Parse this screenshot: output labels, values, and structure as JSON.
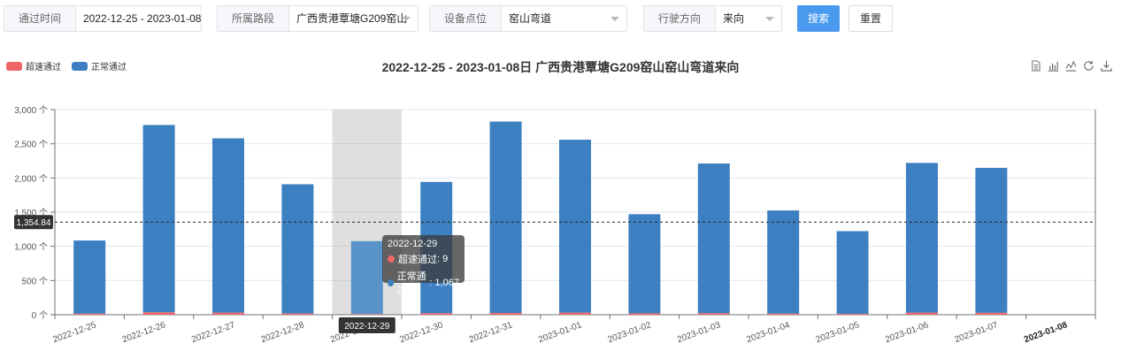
{
  "filters": {
    "time_label": "通过时间",
    "time_value": "2022-12-25 - 2023-01-08",
    "road_label": "所属路段",
    "road_value": "广西贵港覃塘G209窑山",
    "point_label": "设备点位",
    "point_value": "窑山弯道",
    "direction_label": "行驶方向",
    "direction_value": "来向",
    "search_label": "搜索",
    "reset_label": "重置"
  },
  "toolbox": [
    "data-view-icon",
    "bar-chart-icon",
    "line-chart-icon",
    "refresh-icon",
    "download-icon"
  ],
  "chart_data": {
    "type": "bar",
    "stacked": true,
    "title": "2022-12-25 - 2023-01-08日 广西贵港覃塘G209窑山窑山弯道来向",
    "categories": [
      "2022-12-25",
      "2022-12-26",
      "2022-12-27",
      "2022-12-28",
      "2022-12-29",
      "2022-12-30",
      "2022-12-31",
      "2023-01-01",
      "2023-01-02",
      "2023-01-03",
      "2023-01-04",
      "2023-01-05",
      "2023-01-06",
      "2023-01-07",
      "2023-01-08"
    ],
    "series": [
      {
        "name": "超速通过",
        "color": "#ee6666",
        "values": [
          15,
          35,
          30,
          18,
          9,
          22,
          25,
          30,
          20,
          22,
          15,
          12,
          30,
          28,
          0
        ]
      },
      {
        "name": "正常通过",
        "color": "#3d80c1",
        "values": [
          1070,
          2740,
          2550,
          1890,
          1067,
          1920,
          2800,
          2530,
          1450,
          2190,
          1510,
          1210,
          2190,
          2120,
          0
        ]
      }
    ],
    "ylim": [
      0,
      3000
    ],
    "y_ticks": [
      "0 个",
      "500 个",
      "1,000 个",
      "1,500 个",
      "2,000 个",
      "2,500 个",
      "3,000 个"
    ],
    "y_tick_values": [
      0,
      500,
      1000,
      1500,
      2000,
      2500,
      3000
    ],
    "average_line": {
      "value": 1354.84,
      "label": "1,354.84"
    },
    "legend_position": "top-left",
    "grid": true,
    "highlighted_index": 4,
    "axis_pointer_label": "2022-12-29",
    "tooltip": {
      "title": "2022-12-29",
      "rows": [
        {
          "name": "超速通过",
          "value": "9",
          "color": "#ee6666"
        },
        {
          "name": "正常通过",
          "value": "1,067",
          "color": "#3d80c1"
        }
      ]
    }
  }
}
